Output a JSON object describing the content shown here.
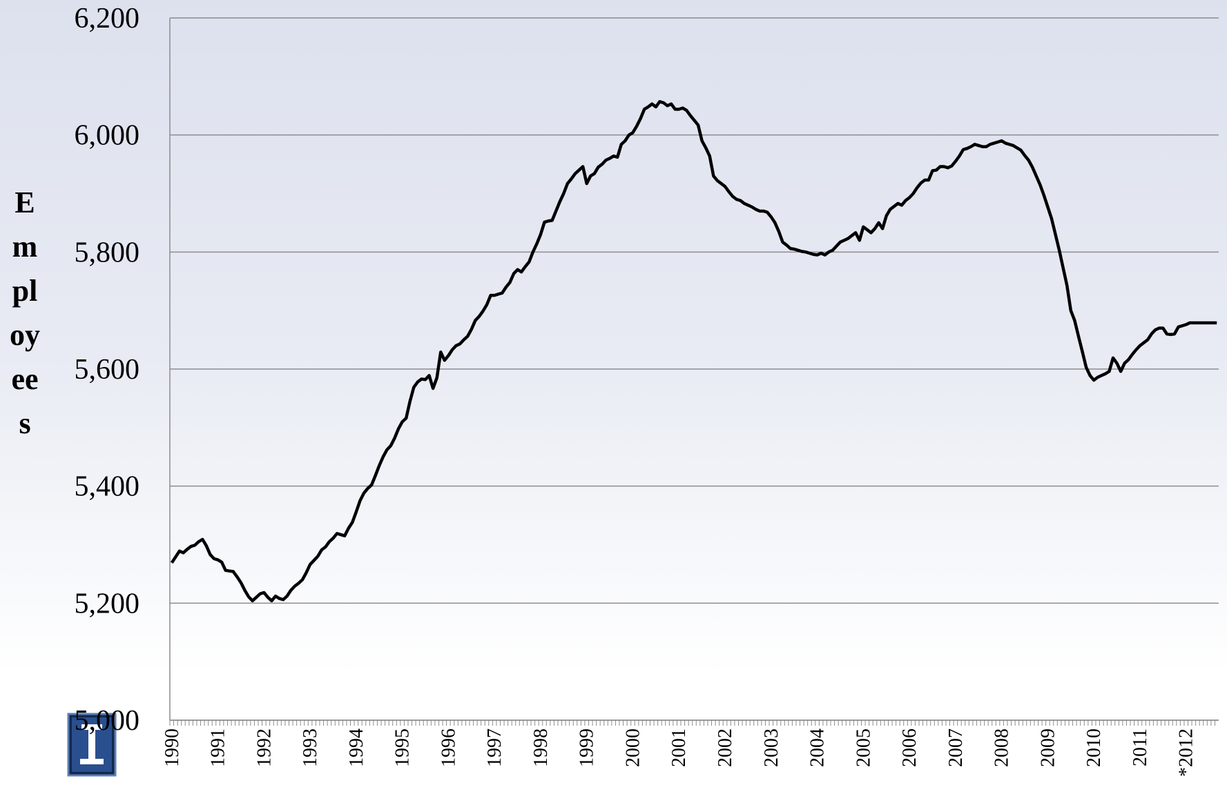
{
  "chart_data": {
    "type": "line",
    "y_label": "Employees",
    "categories": [
      "1990",
      null,
      null,
      null,
      null,
      null,
      null,
      null,
      null,
      null,
      null,
      null,
      "1991",
      null,
      null,
      null,
      null,
      null,
      null,
      null,
      null,
      null,
      null,
      null,
      "1992",
      null,
      null,
      null,
      null,
      null,
      null,
      null,
      null,
      null,
      null,
      null,
      "1993",
      null,
      null,
      null,
      null,
      null,
      null,
      null,
      null,
      null,
      null,
      null,
      "1994",
      null,
      null,
      null,
      null,
      null,
      null,
      null,
      null,
      null,
      null,
      null,
      "1995",
      null,
      null,
      null,
      null,
      null,
      null,
      null,
      null,
      null,
      null,
      null,
      "1996",
      null,
      null,
      null,
      null,
      null,
      null,
      null,
      null,
      null,
      null,
      null,
      "1997",
      null,
      null,
      null,
      null,
      null,
      null,
      null,
      null,
      null,
      null,
      null,
      "1998",
      null,
      null,
      null,
      null,
      null,
      null,
      null,
      null,
      null,
      null,
      null,
      "1999",
      null,
      null,
      null,
      null,
      null,
      null,
      null,
      null,
      null,
      null,
      null,
      "2000",
      null,
      null,
      null,
      null,
      null,
      null,
      null,
      null,
      null,
      null,
      null,
      "2001",
      null,
      null,
      null,
      null,
      null,
      null,
      null,
      null,
      null,
      null,
      null,
      "2002",
      null,
      null,
      null,
      null,
      null,
      null,
      null,
      null,
      null,
      null,
      null,
      "2003",
      null,
      null,
      null,
      null,
      null,
      null,
      null,
      null,
      null,
      null,
      null,
      "2004",
      null,
      null,
      null,
      null,
      null,
      null,
      null,
      null,
      null,
      null,
      null,
      "2005",
      null,
      null,
      null,
      null,
      null,
      null,
      null,
      null,
      null,
      null,
      null,
      "2006",
      null,
      null,
      null,
      null,
      null,
      null,
      null,
      null,
      null,
      null,
      null,
      "2007",
      null,
      null,
      null,
      null,
      null,
      null,
      null,
      null,
      null,
      null,
      null,
      "2008",
      null,
      null,
      null,
      null,
      null,
      null,
      null,
      null,
      null,
      null,
      null,
      "2009",
      null,
      null,
      null,
      null,
      null,
      null,
      null,
      null,
      null,
      null,
      null,
      "2010",
      null,
      null,
      null,
      null,
      null,
      null,
      null,
      null,
      null,
      null,
      null,
      "2011",
      null,
      null,
      null,
      null,
      null,
      null,
      null,
      null,
      null,
      null,
      null,
      "*2012",
      null,
      null,
      null,
      null,
      null,
      null,
      null,
      null
    ],
    "series": [
      {
        "color": "#000000",
        "values": [
          5269,
          5279,
          5289,
          5286,
          5292,
          5297,
          5299,
          5305,
          5309,
          5298,
          5283,
          5276,
          5274,
          5270,
          5256,
          5255,
          5254,
          5245,
          5235,
          5222,
          5211,
          5204,
          5210,
          5216,
          5218,
          5210,
          5204,
          5212,
          5208,
          5206,
          5212,
          5222,
          5229,
          5234,
          5240,
          5252,
          5266,
          5273,
          5280,
          5291,
          5296,
          5305,
          5311,
          5319,
          5317,
          5315,
          5328,
          5338,
          5356,
          5375,
          5388,
          5396,
          5402,
          5418,
          5435,
          5450,
          5462,
          5469,
          5482,
          5498,
          5510,
          5516,
          5545,
          5569,
          5578,
          5583,
          5582,
          5589,
          5567,
          5585,
          5629,
          5615,
          5623,
          5633,
          5640,
          5643,
          5650,
          5656,
          5668,
          5683,
          5690,
          5699,
          5710,
          5726,
          5726,
          5728,
          5730,
          5740,
          5748,
          5763,
          5770,
          5766,
          5775,
          5783,
          5800,
          5814,
          5830,
          5851,
          5853,
          5854,
          5870,
          5886,
          5900,
          5917,
          5925,
          5934,
          5940,
          5946,
          5917,
          5930,
          5934,
          5945,
          5950,
          5957,
          5960,
          5964,
          5962,
          5984,
          5990,
          6000,
          6004,
          6015,
          6028,
          6044,
          6048,
          6053,
          6048,
          6057,
          6055,
          6050,
          6053,
          6044,
          6044,
          6046,
          6042,
          6033,
          6025,
          6017,
          5990,
          5978,
          5964,
          5930,
          5922,
          5917,
          5912,
          5903,
          5895,
          5890,
          5888,
          5883,
          5880,
          5877,
          5873,
          5870,
          5870,
          5868,
          5860,
          5850,
          5835,
          5817,
          5812,
          5806,
          5805,
          5803,
          5801,
          5800,
          5798,
          5796,
          5795,
          5798,
          5795,
          5800,
          5803,
          5810,
          5817,
          5820,
          5823,
          5828,
          5833,
          5820,
          5843,
          5838,
          5833,
          5840,
          5850,
          5840,
          5862,
          5873,
          5878,
          5883,
          5880,
          5888,
          5893,
          5900,
          5910,
          5918,
          5923,
          5923,
          5939,
          5940,
          5946,
          5946,
          5944,
          5947,
          5955,
          5964,
          5975,
          5977,
          5980,
          5984,
          5982,
          5980,
          5980,
          5984,
          5986,
          5988,
          5990,
          5986,
          5984,
          5982,
          5978,
          5974,
          5965,
          5957,
          5945,
          5930,
          5915,
          5897,
          5877,
          5857,
          5830,
          5803,
          5773,
          5743,
          5700,
          5683,
          5656,
          5630,
          5603,
          5589,
          5581,
          5586,
          5589,
          5592,
          5596,
          5619,
          5610,
          5596,
          5610,
          5616,
          5625,
          5633,
          5640,
          5645,
          5650,
          5660,
          5667,
          5670,
          5670,
          5660,
          5659,
          5660,
          5672,
          5674,
          5676,
          5679,
          5679,
          5679,
          5679,
          5679,
          5679,
          5679,
          5679
        ]
      }
    ],
    "ylim": [
      5000,
      6200
    ],
    "yticks": [
      {
        "value": 5000,
        "label": "5,000"
      },
      {
        "value": 5200,
        "label": "5,200"
      },
      {
        "value": 5400,
        "label": "5,400"
      },
      {
        "value": 5600,
        "label": "5,600"
      },
      {
        "value": 5800,
        "label": "5,800"
      },
      {
        "value": 6000,
        "label": "6,000"
      },
      {
        "value": 6200,
        "label": "6,200"
      }
    ],
    "grid": true
  }
}
